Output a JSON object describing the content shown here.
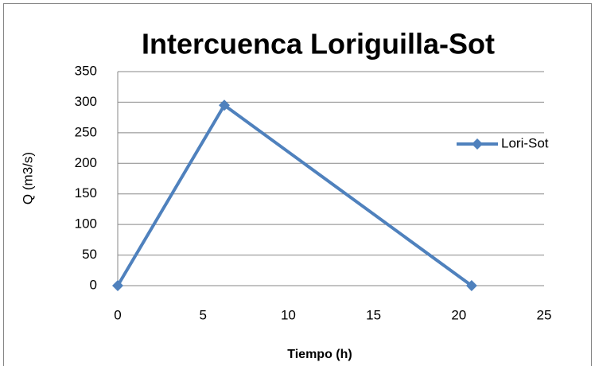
{
  "chart_data": {
    "type": "line",
    "title": "Intercuenca Loriguilla-Sot",
    "xlabel": "Tiempo (h)",
    "ylabel": "Q (m3/s)",
    "x": [
      0,
      6.25,
      20.75
    ],
    "series": [
      {
        "name": "Lori-Sot",
        "color": "#4f81bd",
        "values": [
          0,
          295,
          0
        ]
      }
    ],
    "xlim": [
      0,
      25
    ],
    "xticks": [
      0,
      5,
      10,
      15,
      20,
      25
    ],
    "ylim": [
      0,
      350
    ],
    "yticks": [
      0,
      50,
      100,
      150,
      200,
      250,
      300,
      350
    ],
    "grid": true,
    "legend": "right"
  }
}
